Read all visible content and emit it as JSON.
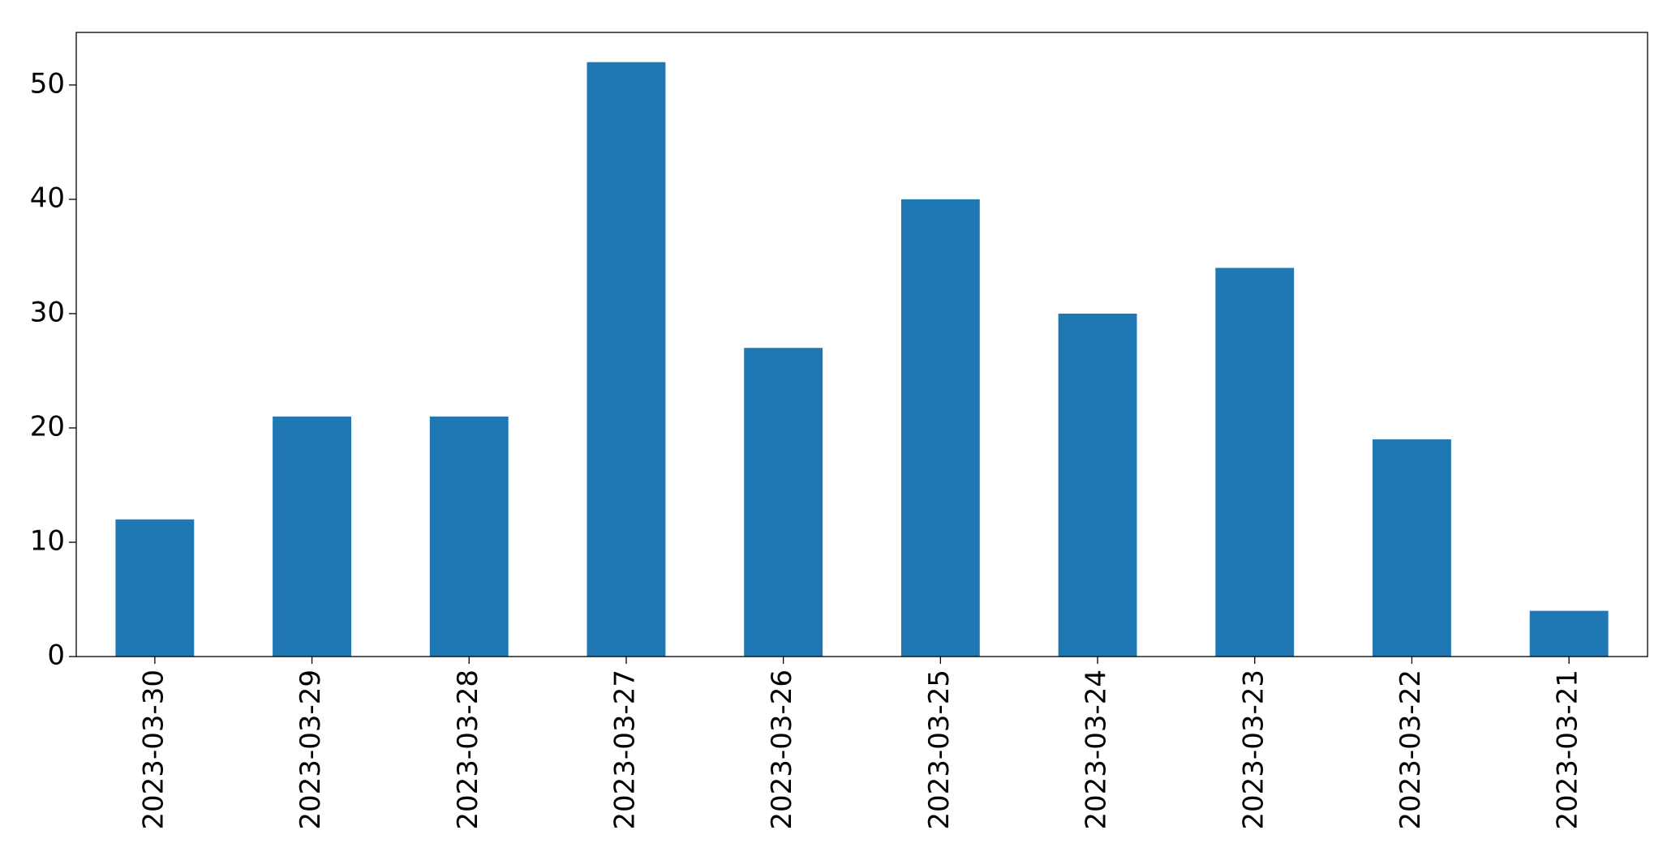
{
  "chart_data": {
    "type": "bar",
    "categories": [
      "2023-03-30",
      "2023-03-29",
      "2023-03-28",
      "2023-03-27",
      "2023-03-26",
      "2023-03-25",
      "2023-03-24",
      "2023-03-23",
      "2023-03-22",
      "2023-03-21"
    ],
    "values": [
      12,
      21,
      21,
      52,
      27,
      40,
      30,
      34,
      19,
      4
    ],
    "color": "#1f77b4",
    "ylim": [
      0,
      54.6
    ],
    "yticks": [
      0,
      10,
      20,
      30,
      40,
      50
    ],
    "grid": false
  }
}
